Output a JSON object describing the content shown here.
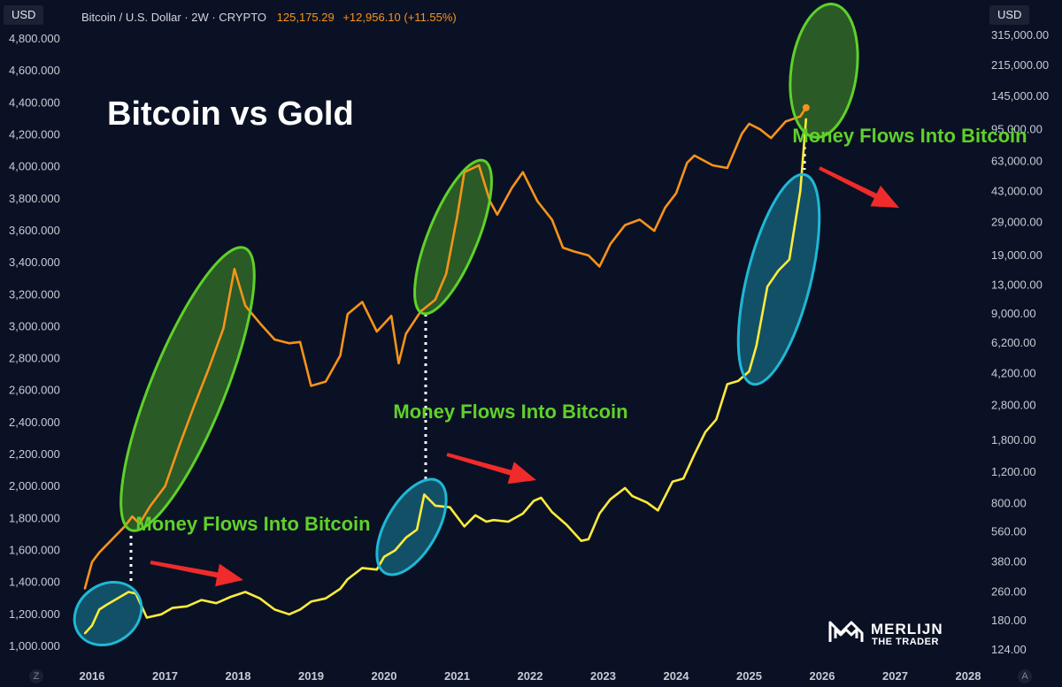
{
  "header": {
    "left_currency": "USD",
    "right_currency": "USD",
    "symbol": "Bitcoin / U.S. Dollar · 2W · CRYPTO",
    "price": "125,175.29",
    "change": "+12,956.10 (+11.55%)",
    "corner_left": "Z",
    "corner_right": "A"
  },
  "colors": {
    "background": "#0b1124",
    "bitcoin": "#f7931a",
    "gold": "#ffeb3b",
    "annotation_green": "#5fd12a",
    "annotation_blue": "#1fb8d6",
    "arrow_red": "#ef2b2b"
  },
  "chart_data": {
    "type": "line",
    "title": "Bitcoin vs Gold",
    "x_ticks": [
      "2016",
      "2017",
      "2018",
      "2019",
      "2020",
      "2021",
      "2022",
      "2023",
      "2024",
      "2025",
      "2026",
      "2027",
      "2028"
    ],
    "left_axis": {
      "label": "USD",
      "ylim": [
        1000,
        4800
      ],
      "ticks": [
        "4,800.000",
        "4,600.000",
        "4,400.000",
        "4,200.000",
        "4,000.000",
        "3,800.000",
        "3,600.000",
        "3,400.000",
        "3,200.000",
        "3,000.000",
        "2,800.000",
        "2,600.000",
        "2,400.000",
        "2,200.000",
        "2,000.000",
        "1,800.000",
        "1,600.000",
        "1,400.000",
        "1,200.000",
        "1,000.000"
      ]
    },
    "right_axis": {
      "label": "USD",
      "scale": "log",
      "ticks": [
        "315,000.00",
        "215,000.00",
        "145,000.00",
        "95,000.00",
        "63,000.00",
        "43,000.00",
        "29,000.00",
        "19,000.00",
        "13,000.00",
        "9,000.00",
        "6,200.00",
        "4,200.00",
        "2,800.00",
        "1,800.00",
        "1,200.00",
        "800.00",
        "560.00",
        "380.00",
        "260.00",
        "180.00",
        "124.00"
      ]
    },
    "series": [
      {
        "name": "Bitcoin / U.S. Dollar",
        "axis": "right",
        "x": [
          2015.9,
          2016.0,
          2016.1,
          2016.3,
          2016.45,
          2016.55,
          2016.65,
          2016.8,
          2017.0,
          2017.2,
          2017.4,
          2017.6,
          2017.8,
          2017.95,
          2018.1,
          2018.3,
          2018.5,
          2018.7,
          2018.85,
          2019.0,
          2019.2,
          2019.4,
          2019.5,
          2019.7,
          2019.9,
          2020.1,
          2020.2,
          2020.3,
          2020.5,
          2020.7,
          2020.85,
          2021.0,
          2021.1,
          2021.3,
          2021.45,
          2021.55,
          2021.75,
          2021.9,
          2022.1,
          2022.3,
          2022.45,
          2022.6,
          2022.8,
          2022.95,
          2023.1,
          2023.3,
          2023.5,
          2023.7,
          2023.85,
          2024.0,
          2024.15,
          2024.25,
          2024.5,
          2024.7,
          2024.9,
          2025.0,
          2025.15,
          2025.3,
          2025.5,
          2025.7,
          2025.78
        ],
        "values": [
          270,
          380,
          430,
          520,
          600,
          680,
          620,
          780,
          1000,
          1700,
          2800,
          4500,
          7500,
          16000,
          10000,
          8000,
          6500,
          6200,
          6300,
          3600,
          3800,
          5300,
          9000,
          10500,
          7200,
          8800,
          4800,
          7000,
          9300,
          10800,
          15000,
          31000,
          55000,
          60000,
          38000,
          32000,
          45000,
          55000,
          38000,
          30000,
          21000,
          20000,
          19000,
          16500,
          22000,
          28000,
          30000,
          26000,
          35000,
          42000,
          62000,
          68000,
          60000,
          58000,
          90000,
          102000,
          95000,
          85000,
          105000,
          112000,
          125175
        ]
      },
      {
        "name": "Gold",
        "axis": "left",
        "x": [
          2015.9,
          2016.0,
          2016.1,
          2016.2,
          2016.35,
          2016.5,
          2016.6,
          2016.75,
          2016.95,
          2017.1,
          2017.3,
          2017.5,
          2017.7,
          2017.9,
          2018.1,
          2018.3,
          2018.5,
          2018.7,
          2018.85,
          2019.0,
          2019.2,
          2019.4,
          2019.5,
          2019.7,
          2019.9,
          2020.0,
          2020.15,
          2020.3,
          2020.45,
          2020.55,
          2020.7,
          2020.9,
          2021.1,
          2021.25,
          2021.4,
          2021.5,
          2021.7,
          2021.9,
          2022.05,
          2022.15,
          2022.3,
          2022.5,
          2022.7,
          2022.8,
          2022.95,
          2023.1,
          2023.3,
          2023.4,
          2023.6,
          2023.75,
          2023.95,
          2024.1,
          2024.25,
          2024.4,
          2024.55,
          2024.7,
          2024.85,
          2025.0,
          2025.1,
          2025.25,
          2025.4,
          2025.55,
          2025.7,
          2025.78
        ],
        "values": [
          1080,
          1130,
          1230,
          1260,
          1300,
          1340,
          1330,
          1180,
          1200,
          1240,
          1250,
          1290,
          1270,
          1310,
          1340,
          1300,
          1230,
          1200,
          1230,
          1280,
          1300,
          1360,
          1420,
          1490,
          1480,
          1560,
          1600,
          1680,
          1730,
          1950,
          1880,
          1870,
          1750,
          1820,
          1780,
          1790,
          1780,
          1830,
          1910,
          1930,
          1840,
          1760,
          1660,
          1670,
          1830,
          1920,
          1990,
          1940,
          1900,
          1850,
          2030,
          2050,
          2200,
          2340,
          2420,
          2640,
          2660,
          2720,
          2880,
          3250,
          3350,
          3420,
          3850,
          4300
        ]
      }
    ],
    "annotations": [
      "Money Flows Into Bitcoin",
      "Money Flows Into Bitcoin",
      "Money Flows Into Bitcoin"
    ]
  },
  "brand": {
    "name": "MERLIJN",
    "tagline": "THE TRADER"
  }
}
